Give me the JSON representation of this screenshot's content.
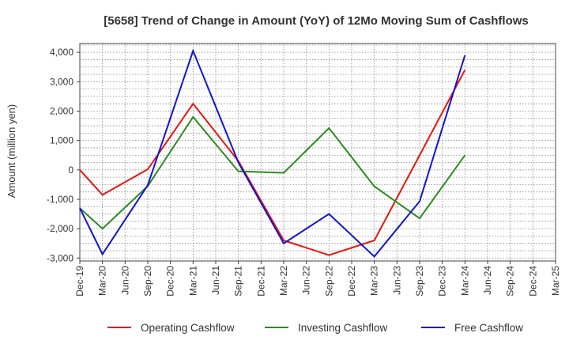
{
  "chart_data": {
    "type": "line",
    "title": "[5658]  Trend of Change in Amount (YoY) of 12Mo Moving Sum of Cashflows",
    "ylabel": "Amount (million yen)",
    "xlabel": "",
    "ylim": [
      -3100,
      4300
    ],
    "yticks": [
      4000,
      3000,
      2000,
      1000,
      0,
      -1000,
      -2000,
      -3000
    ],
    "ytick_labels": [
      "4,000",
      "3,000",
      "2,000",
      "1,000",
      "0",
      "-1,000",
      "-2,000",
      "-3,000"
    ],
    "categories": [
      "Dec-19",
      "Mar-20",
      "Jun-20",
      "Sep-20",
      "Dec-20",
      "Mar-21",
      "Jun-21",
      "Sep-21",
      "Dec-21",
      "Mar-22",
      "Jun-22",
      "Sep-22",
      "Dec-22",
      "Mar-23",
      "Jun-23",
      "Sep-23",
      "Dec-23",
      "Mar-24",
      "Jun-24",
      "Sep-24",
      "Dec-24",
      "Mar-25"
    ],
    "grid": true,
    "legend_position": "bottom",
    "series": [
      {
        "name": "Operating Cashflow",
        "color": "#e8150f",
        "points": [
          [
            0,
            0
          ],
          [
            1,
            -850
          ],
          [
            3,
            20
          ],
          [
            5,
            2250
          ],
          [
            7,
            300
          ],
          [
            9,
            -2400
          ],
          [
            11,
            -2900
          ],
          [
            13,
            -2400
          ],
          [
            15,
            500
          ],
          [
            17,
            3400
          ]
        ]
      },
      {
        "name": "Investing Cashflow",
        "color": "#2e8b22",
        "points": [
          [
            0,
            -1300
          ],
          [
            1,
            -2000
          ],
          [
            3,
            -550
          ],
          [
            5,
            1800
          ],
          [
            7,
            -50
          ],
          [
            9,
            -100
          ],
          [
            11,
            1420
          ],
          [
            13,
            -560
          ],
          [
            15,
            -1650
          ],
          [
            17,
            500
          ]
        ]
      },
      {
        "name": "Free Cashflow",
        "color": "#1414d2",
        "points": [
          [
            0,
            -1300
          ],
          [
            1,
            -2870
          ],
          [
            3,
            -520
          ],
          [
            5,
            4050
          ],
          [
            7,
            250
          ],
          [
            9,
            -2500
          ],
          [
            11,
            -1500
          ],
          [
            13,
            -2950
          ],
          [
            15,
            -1070
          ],
          [
            17,
            3900
          ]
        ]
      }
    ]
  }
}
